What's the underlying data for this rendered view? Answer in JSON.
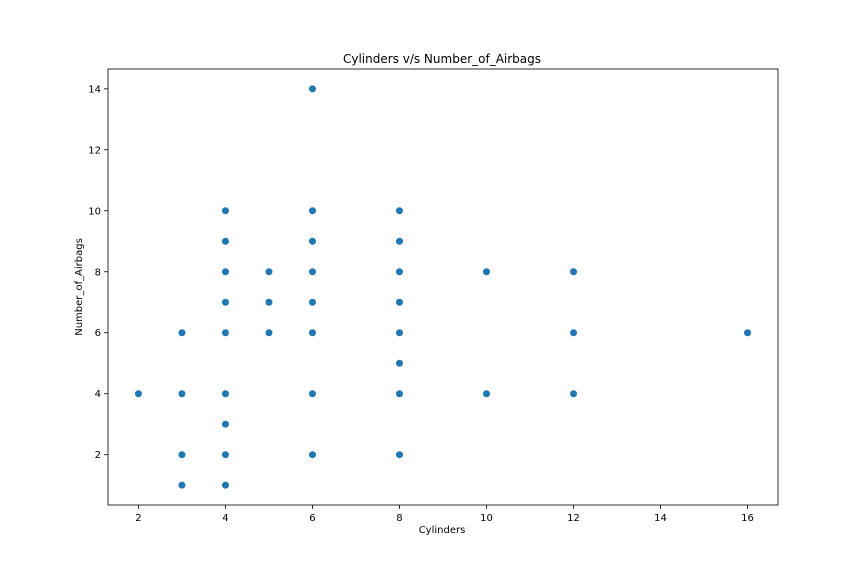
{
  "chart_data": {
    "type": "scatter",
    "title": "Cylinders v/s Number_of_Airbags",
    "xlabel": "Cylinders",
    "ylabel": "Number_of_Airbags",
    "xlim": [
      1.3,
      16.7
    ],
    "ylim": [
      0.35,
      14.65
    ],
    "xticks": [
      2,
      4,
      6,
      8,
      10,
      12,
      14,
      16
    ],
    "yticks": [
      2,
      4,
      6,
      8,
      10,
      12,
      14
    ],
    "grid": false,
    "marker_color": "#1f77b4",
    "points": [
      [
        2,
        4
      ],
      [
        3,
        1
      ],
      [
        3,
        2
      ],
      [
        3,
        4
      ],
      [
        3,
        6
      ],
      [
        4,
        1
      ],
      [
        4,
        2
      ],
      [
        4,
        3
      ],
      [
        4,
        4
      ],
      [
        4,
        6
      ],
      [
        4,
        7
      ],
      [
        4,
        8
      ],
      [
        4,
        9
      ],
      [
        4,
        10
      ],
      [
        5,
        6
      ],
      [
        5,
        7
      ],
      [
        5,
        8
      ],
      [
        6,
        2
      ],
      [
        6,
        4
      ],
      [
        6,
        6
      ],
      [
        6,
        7
      ],
      [
        6,
        8
      ],
      [
        6,
        9
      ],
      [
        6,
        10
      ],
      [
        6,
        14
      ],
      [
        8,
        2
      ],
      [
        8,
        4
      ],
      [
        8,
        5
      ],
      [
        8,
        6
      ],
      [
        8,
        7
      ],
      [
        8,
        8
      ],
      [
        8,
        9
      ],
      [
        8,
        10
      ],
      [
        10,
        4
      ],
      [
        10,
        8
      ],
      [
        12,
        4
      ],
      [
        12,
        6
      ],
      [
        12,
        8
      ],
      [
        16,
        6
      ]
    ]
  }
}
